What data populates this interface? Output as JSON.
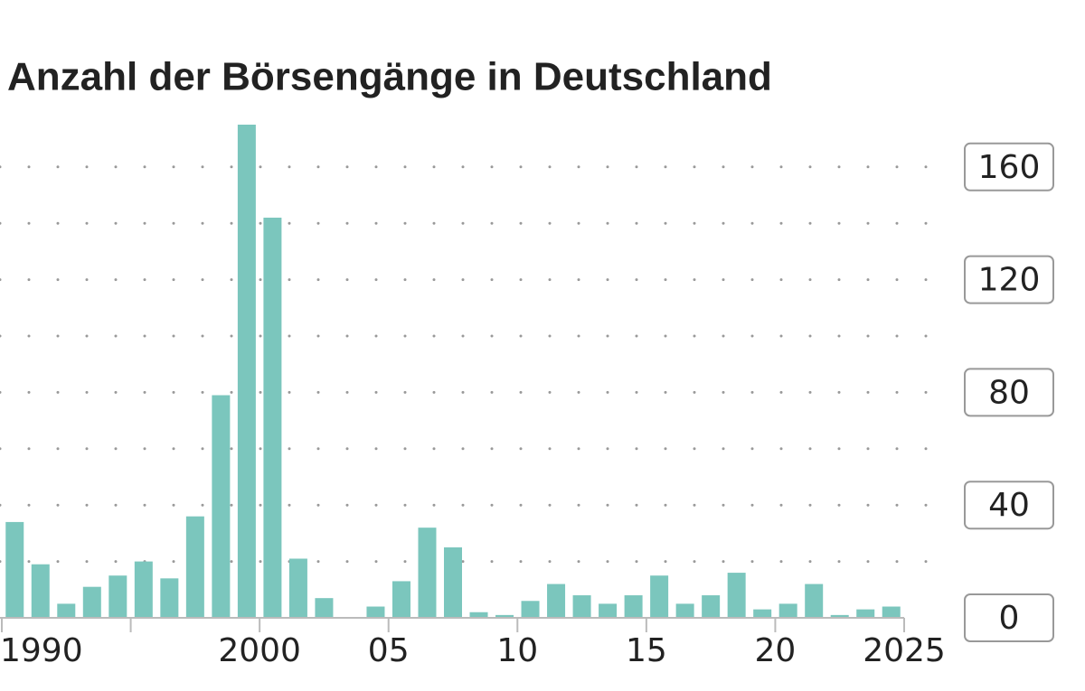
{
  "chart_data": {
    "type": "bar",
    "title": "Anzahl der Börsengänge in Deutschland",
    "x": [
      1990,
      1991,
      1992,
      1993,
      1994,
      1995,
      1996,
      1997,
      1998,
      1999,
      2000,
      2001,
      2002,
      2003,
      2004,
      2005,
      2006,
      2007,
      2008,
      2009,
      2010,
      2011,
      2012,
      2013,
      2014,
      2015,
      2016,
      2017,
      2018,
      2019,
      2020,
      2021,
      2022,
      2023,
      2024
    ],
    "values": [
      34,
      19,
      5,
      11,
      15,
      20,
      14,
      36,
      79,
      175,
      142,
      21,
      7,
      0,
      4,
      13,
      32,
      25,
      2,
      1,
      6,
      12,
      8,
      5,
      8,
      15,
      5,
      8,
      16,
      3,
      5,
      12,
      1,
      3,
      4
    ],
    "color": "#7bc6bd",
    "xlim": [
      1990,
      2025
    ],
    "xticks": [
      1990,
      {
        "value": 1995,
        "label": null
      },
      2000,
      {
        "value": 2005,
        "label": "05"
      },
      {
        "value": 2010,
        "label": "10"
      },
      {
        "value": 2015,
        "label": "15"
      },
      {
        "value": 2020,
        "label": "20"
      },
      2025
    ],
    "ylim": [
      0,
      180
    ],
    "yticks": [
      0,
      40,
      80,
      120,
      160
    ],
    "minor_yticks": [
      20,
      60,
      100,
      140
    ],
    "grid": true,
    "y_axis_side": "right"
  }
}
